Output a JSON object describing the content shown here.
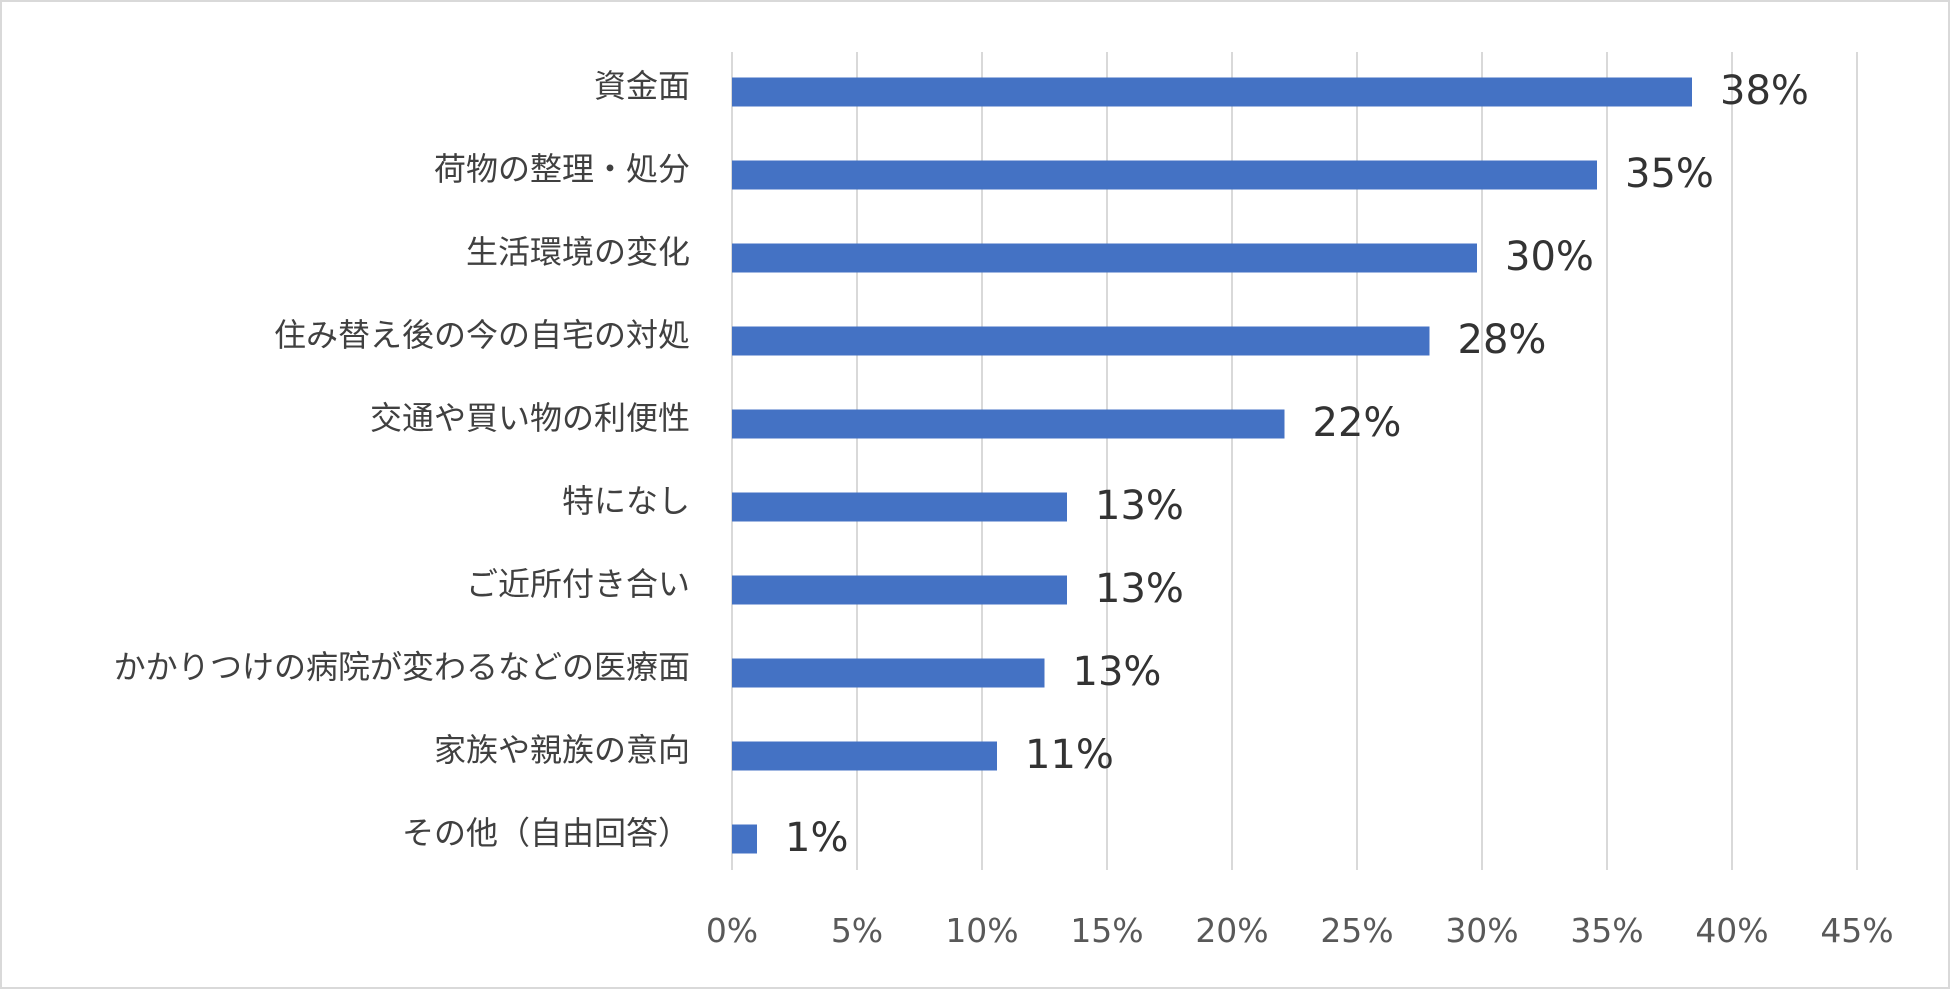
{
  "chart_data": {
    "type": "bar",
    "orientation": "horizontal",
    "categories": [
      "資金面",
      "荷物の整理・処分",
      "生活環境の変化",
      "住み替え後の今の自宅の対処",
      "交通や買い物の利便性",
      "特になし",
      "ご近所付き合い",
      "かかりつけの病院が変わるなどの医療面",
      "家族や親族の意向",
      "その他（自由回答）"
    ],
    "values": [
      38.4,
      34.6,
      29.8,
      27.9,
      22.1,
      13.4,
      13.4,
      12.5,
      10.6,
      1.0
    ],
    "data_labels": [
      "38%",
      "35%",
      "30%",
      "28%",
      "22%",
      "13%",
      "13%",
      "13%",
      "11%",
      "1%"
    ],
    "xlim": [
      0,
      45
    ],
    "x_ticks": [
      0,
      5,
      10,
      15,
      20,
      25,
      30,
      35,
      40,
      45
    ],
    "x_tick_labels": [
      "0%",
      "5%",
      "10%",
      "15%",
      "20%",
      "25%",
      "30%",
      "35%",
      "40%",
      "45%"
    ],
    "title": "",
    "xlabel": "",
    "ylabel": "",
    "grid": "vertical",
    "legend": "none",
    "bar_color": "#4472c4",
    "grid_color": "#d9d9d9"
  }
}
